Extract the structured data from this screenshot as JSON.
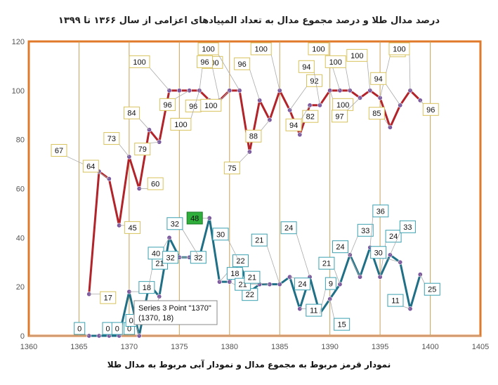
{
  "chart_data": {
    "type": "line",
    "title": "درصد مدال طلا و درصد مجموع مدال به تعداد المپیادهای اعزامی از سال ۱۳۶۶ تا ۱۳۹۹",
    "footer": "نمودار قرمز مربوط به مجموع مدال و نمودار آبی مربوط به مدال طلا",
    "xlabel": "",
    "ylabel": "",
    "xlim": [
      1360,
      1405
    ],
    "ylim": [
      0,
      120
    ],
    "x_ticks": [
      1360,
      1365,
      1370,
      1375,
      1380,
      1385,
      1390,
      1395,
      1400,
      1405
    ],
    "y_ticks": [
      0,
      20,
      40,
      60,
      80,
      100,
      120
    ],
    "grid": "vertical",
    "colors": {
      "red": "#b2232a",
      "blue": "#1f6f86",
      "gold": "#c8a25a",
      "frame": "#e07a2a",
      "marker": "#7d5aa0"
    },
    "series": [
      {
        "color": "#b2232a",
        "x": [
          1366,
          1367,
          1368,
          1369,
          1370,
          1371,
          1372,
          1373,
          1374,
          1375,
          1376,
          1377,
          1378,
          1379,
          1380,
          1381,
          1382,
          1383,
          1384,
          1385,
          1386,
          1387,
          1388,
          1389,
          1390,
          1391,
          1392,
          1393,
          1394,
          1395,
          1396,
          1397,
          1398,
          1399
        ],
        "y": [
          17,
          67,
          64,
          45,
          73,
          60,
          84,
          79,
          100,
          100,
          100,
          100,
          96,
          96,
          100,
          100,
          75,
          96,
          88,
          100,
          92,
          82,
          94,
          94,
          100,
          100,
          100,
          97,
          100,
          97,
          85,
          94,
          100,
          96
        ]
      },
      {
        "color": "#1f6f86",
        "x": [
          1366,
          1367,
          1368,
          1369,
          1370,
          1371,
          1372,
          1373,
          1374,
          1375,
          1376,
          1377,
          1378,
          1379,
          1380,
          1381,
          1382,
          1383,
          1384,
          1385,
          1386,
          1387,
          1388,
          1389,
          1390,
          1391,
          1392,
          1393,
          1394,
          1395,
          1396,
          1397,
          1398,
          1399
        ],
        "y": [
          0,
          0,
          0,
          0,
          18,
          0,
          21,
          16,
          40,
          32,
          32,
          32,
          48,
          22,
          22,
          30,
          18,
          21,
          21,
          21,
          24,
          11,
          24,
          9,
          15,
          21,
          33,
          24,
          36,
          24,
          33,
          30,
          11,
          25
        ]
      }
    ],
    "highlight": {
      "index": 12,
      "value": "48"
    },
    "tooltip": {
      "line1": "Series 3 Point \"1370\"",
      "line2": "(1370, 18)"
    }
  }
}
